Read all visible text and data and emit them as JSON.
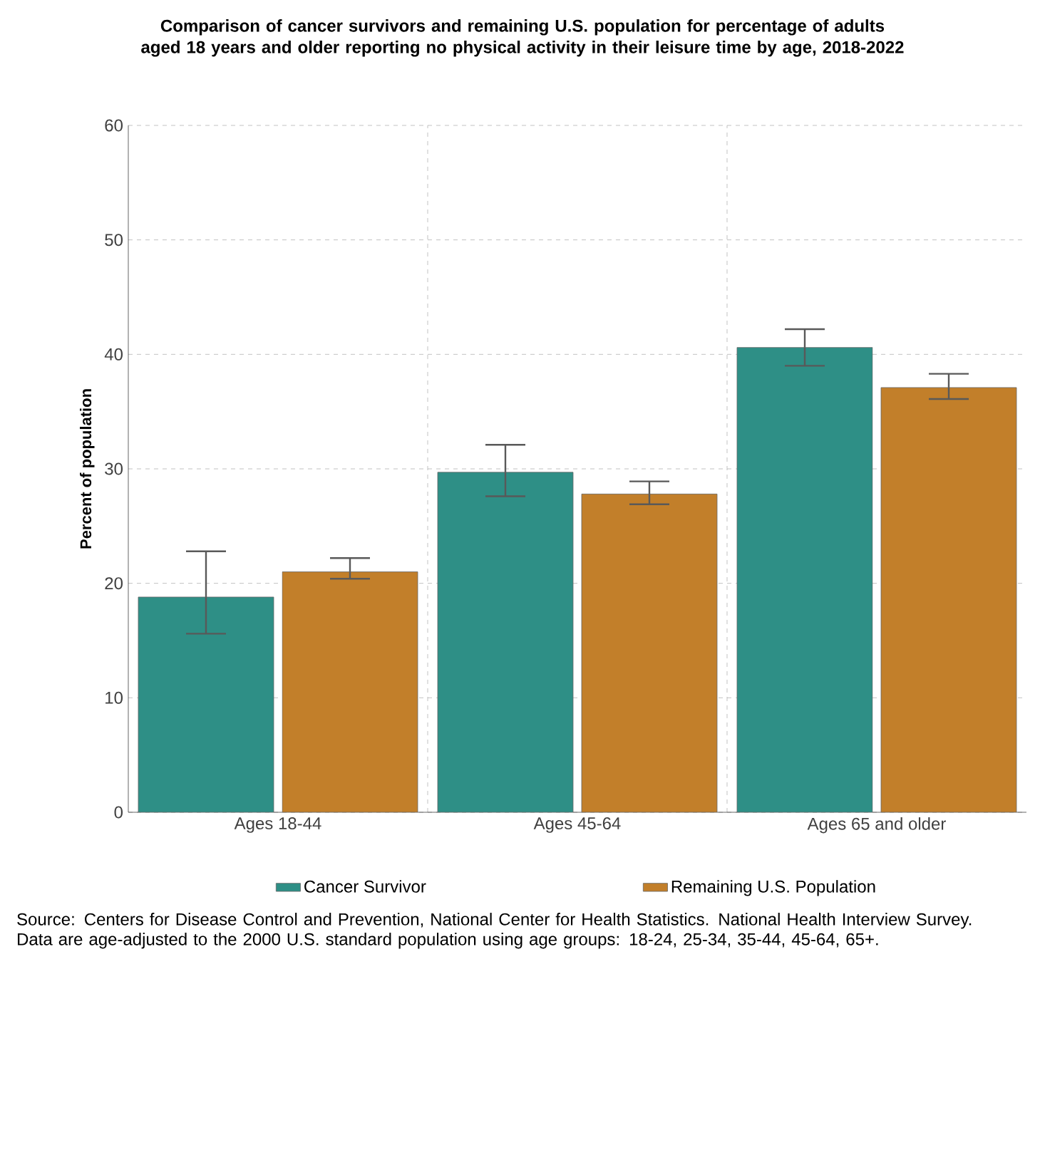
{
  "chart_data": {
    "type": "bar",
    "title": "Comparison of cancer survivors and remaining U.S. population for percentage of adults aged 18 years and older reporting no physical activity in their leisure time by age, 2018-2022",
    "ylabel": "Percent of population",
    "categories": [
      "Ages 18-44",
      "Ages 45-64",
      "Ages 65 and older"
    ],
    "series": [
      {
        "name": "Cancer Survivor",
        "color": "#2e8f86",
        "values": [
          18.8,
          29.7,
          40.6
        ],
        "errors": [
          [
            15.6,
            22.8
          ],
          [
            27.6,
            32.1
          ],
          [
            39.0,
            42.2
          ]
        ]
      },
      {
        "name": "Remaining U.S. Population",
        "color": "#c27f2a",
        "values": [
          21.0,
          27.8,
          37.1
        ],
        "errors": [
          [
            20.4,
            22.2
          ],
          [
            26.9,
            28.9
          ],
          [
            36.1,
            38.3
          ]
        ]
      }
    ],
    "ylim": [
      0,
      60
    ],
    "yticks": [
      0,
      10,
      20,
      30,
      40,
      50,
      60
    ],
    "grid": true,
    "legend": "bottom",
    "annotations": [
      "Source: Centers for Disease Control and Prevention, National Center for Health Statistics. National Health Interview Survey.",
      "Data are age-adjusted to the 2000 U.S. standard population using age groups: 18-24, 25-34, 35-44, 45-64, 65+."
    ]
  }
}
